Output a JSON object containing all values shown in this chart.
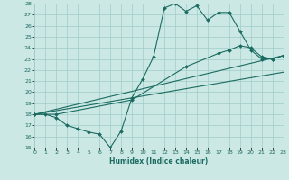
{
  "xlabel": "Humidex (Indice chaleur)",
  "x_min": 0,
  "x_max": 23,
  "y_min": 15,
  "y_max": 28,
  "background_color": "#cce8e5",
  "grid_color": "#9fccc8",
  "line_color": "#1a6b60",
  "lines": [
    {
      "x": [
        0,
        1,
        2,
        3,
        4,
        5,
        6,
        7,
        8,
        9,
        10,
        11,
        12,
        13,
        14,
        15,
        16,
        17,
        18,
        19,
        20,
        21,
        22,
        23
      ],
      "y": [
        18.0,
        18.0,
        17.7,
        17.0,
        16.7,
        16.4,
        16.2,
        15.0,
        16.5,
        19.5,
        21.2,
        23.2,
        27.6,
        28.0,
        27.3,
        27.8,
        26.5,
        27.2,
        27.2,
        25.5,
        23.8,
        23.0,
        23.0,
        23.3
      ],
      "marker": "D",
      "markersize": 2.0,
      "linewidth": 0.8
    },
    {
      "x": [
        0,
        2,
        9,
        14,
        17,
        18,
        19,
        20,
        21,
        22,
        23
      ],
      "y": [
        18.0,
        18.0,
        19.3,
        22.3,
        23.5,
        23.8,
        24.2,
        24.0,
        23.2,
        23.0,
        23.3
      ],
      "marker": "D",
      "markersize": 2.0,
      "linewidth": 0.8
    },
    {
      "x": [
        0,
        23
      ],
      "y": [
        18.0,
        21.8
      ],
      "marker": null,
      "markersize": 0,
      "linewidth": 0.8
    },
    {
      "x": [
        0,
        23
      ],
      "y": [
        18.0,
        23.3
      ],
      "marker": null,
      "markersize": 0,
      "linewidth": 0.8
    }
  ]
}
